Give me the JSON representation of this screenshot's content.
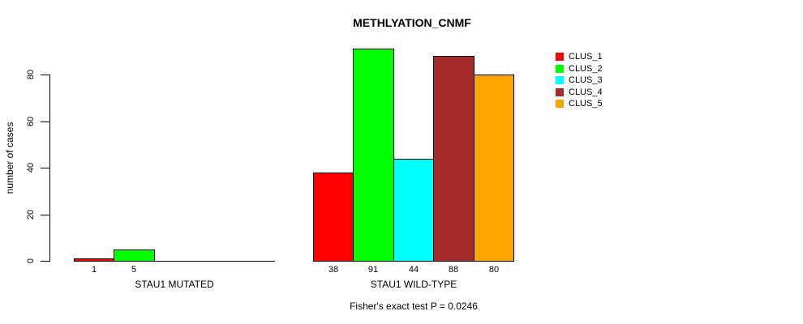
{
  "title": "METHLYATION_CNMF",
  "y_axis": {
    "label": "number of cases"
  },
  "footnote": "Fisher's exact test P = 0.0246",
  "legend": {
    "entries": [
      {
        "label": "CLUS_1",
        "color": "#FF0000"
      },
      {
        "label": "CLUS_2",
        "color": "#00FF00"
      },
      {
        "label": "CLUS_3",
        "color": "#00FFFF"
      },
      {
        "label": "CLUS_4",
        "color": "#A52A2A"
      },
      {
        "label": "CLUS_5",
        "color": "#FFA500"
      }
    ]
  },
  "chart_data": {
    "type": "bar",
    "title": "METHLYATION_CNMF",
    "ylabel": "number of cases",
    "ylim": [
      0,
      80
    ],
    "yticks": [
      0,
      20,
      40,
      60,
      80
    ],
    "grid": false,
    "legend_position": "right",
    "categories": [
      "STAU1 MUTATED",
      "STAU1 WILD-TYPE"
    ],
    "series": [
      {
        "name": "CLUS_1",
        "color": "#FF0000",
        "values": [
          1,
          38
        ]
      },
      {
        "name": "CLUS_2",
        "color": "#00FF00",
        "values": [
          5,
          91
        ]
      },
      {
        "name": "CLUS_3",
        "color": "#00FFFF",
        "values": [
          0,
          44
        ]
      },
      {
        "name": "CLUS_4",
        "color": "#A52A2A",
        "values": [
          0,
          88
        ]
      },
      {
        "name": "CLUS_5",
        "color": "#FFA500",
        "values": [
          0,
          80
        ]
      }
    ],
    "bar_value_labels": [
      [
        "1",
        "5",
        "",
        "",
        ""
      ],
      [
        "38",
        "91",
        "44",
        "88",
        "80"
      ]
    ],
    "annotation": "Fisher's exact test P = 0.0246"
  }
}
